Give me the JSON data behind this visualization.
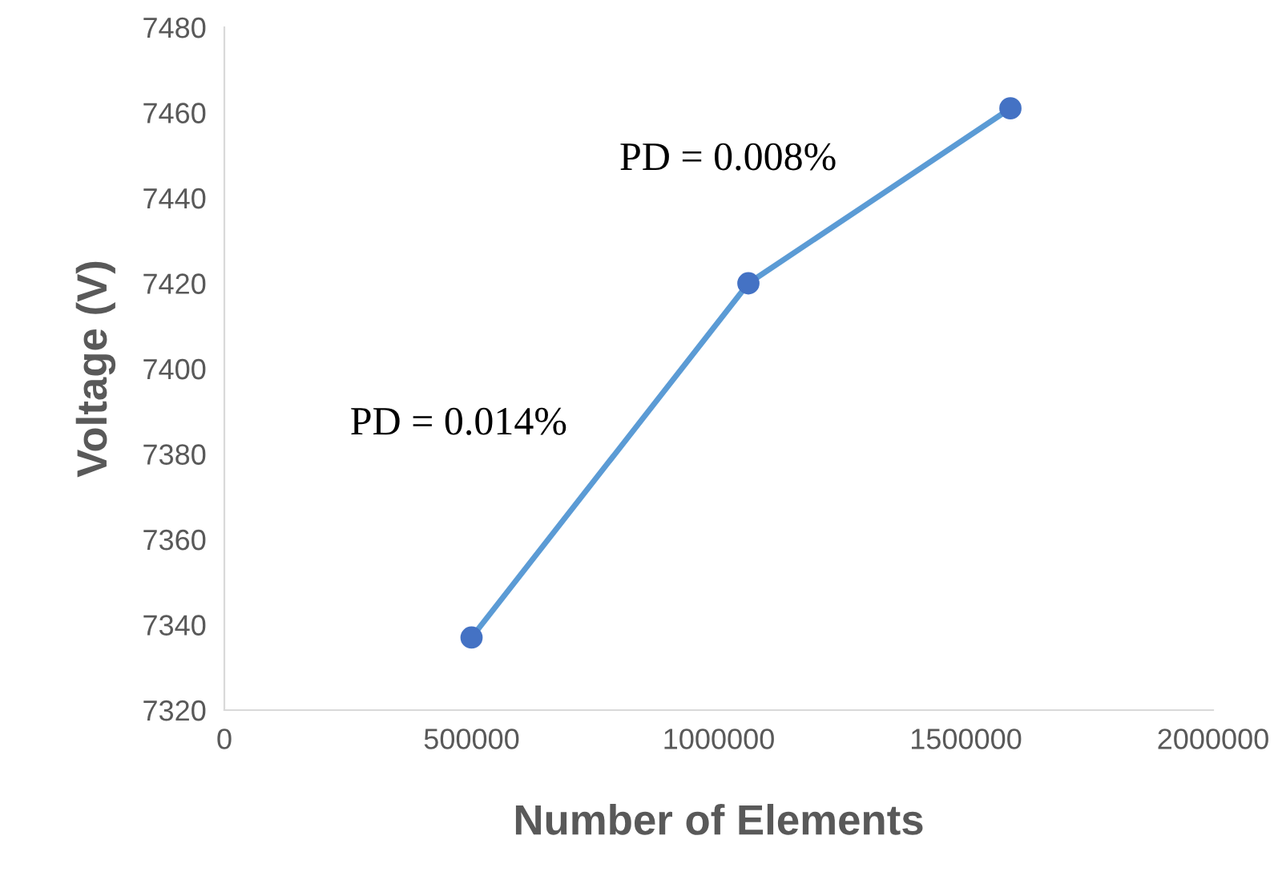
{
  "chart_data": {
    "type": "line",
    "xlabel": "Number of Elements",
    "ylabel": "Voltage (V)",
    "x": [
      500000,
      1060000,
      1590000
    ],
    "series": [
      {
        "color": "#5b9bd5",
        "values": [
          7337,
          7420,
          7461
        ]
      }
    ],
    "xlim": [
      0,
      2000000
    ],
    "xticks": [
      0,
      500000,
      1000000,
      1500000,
      2000000
    ],
    "ylim": [
      7320,
      7480
    ],
    "yticks": [
      7320,
      7340,
      7360,
      7380,
      7400,
      7420,
      7440,
      7460,
      7480
    ],
    "marker": "circle",
    "line_style": "solid",
    "grid": false,
    "legend": false,
    "annotations": [
      "PD = 0.014%",
      "PD = 0.008%"
    ]
  }
}
